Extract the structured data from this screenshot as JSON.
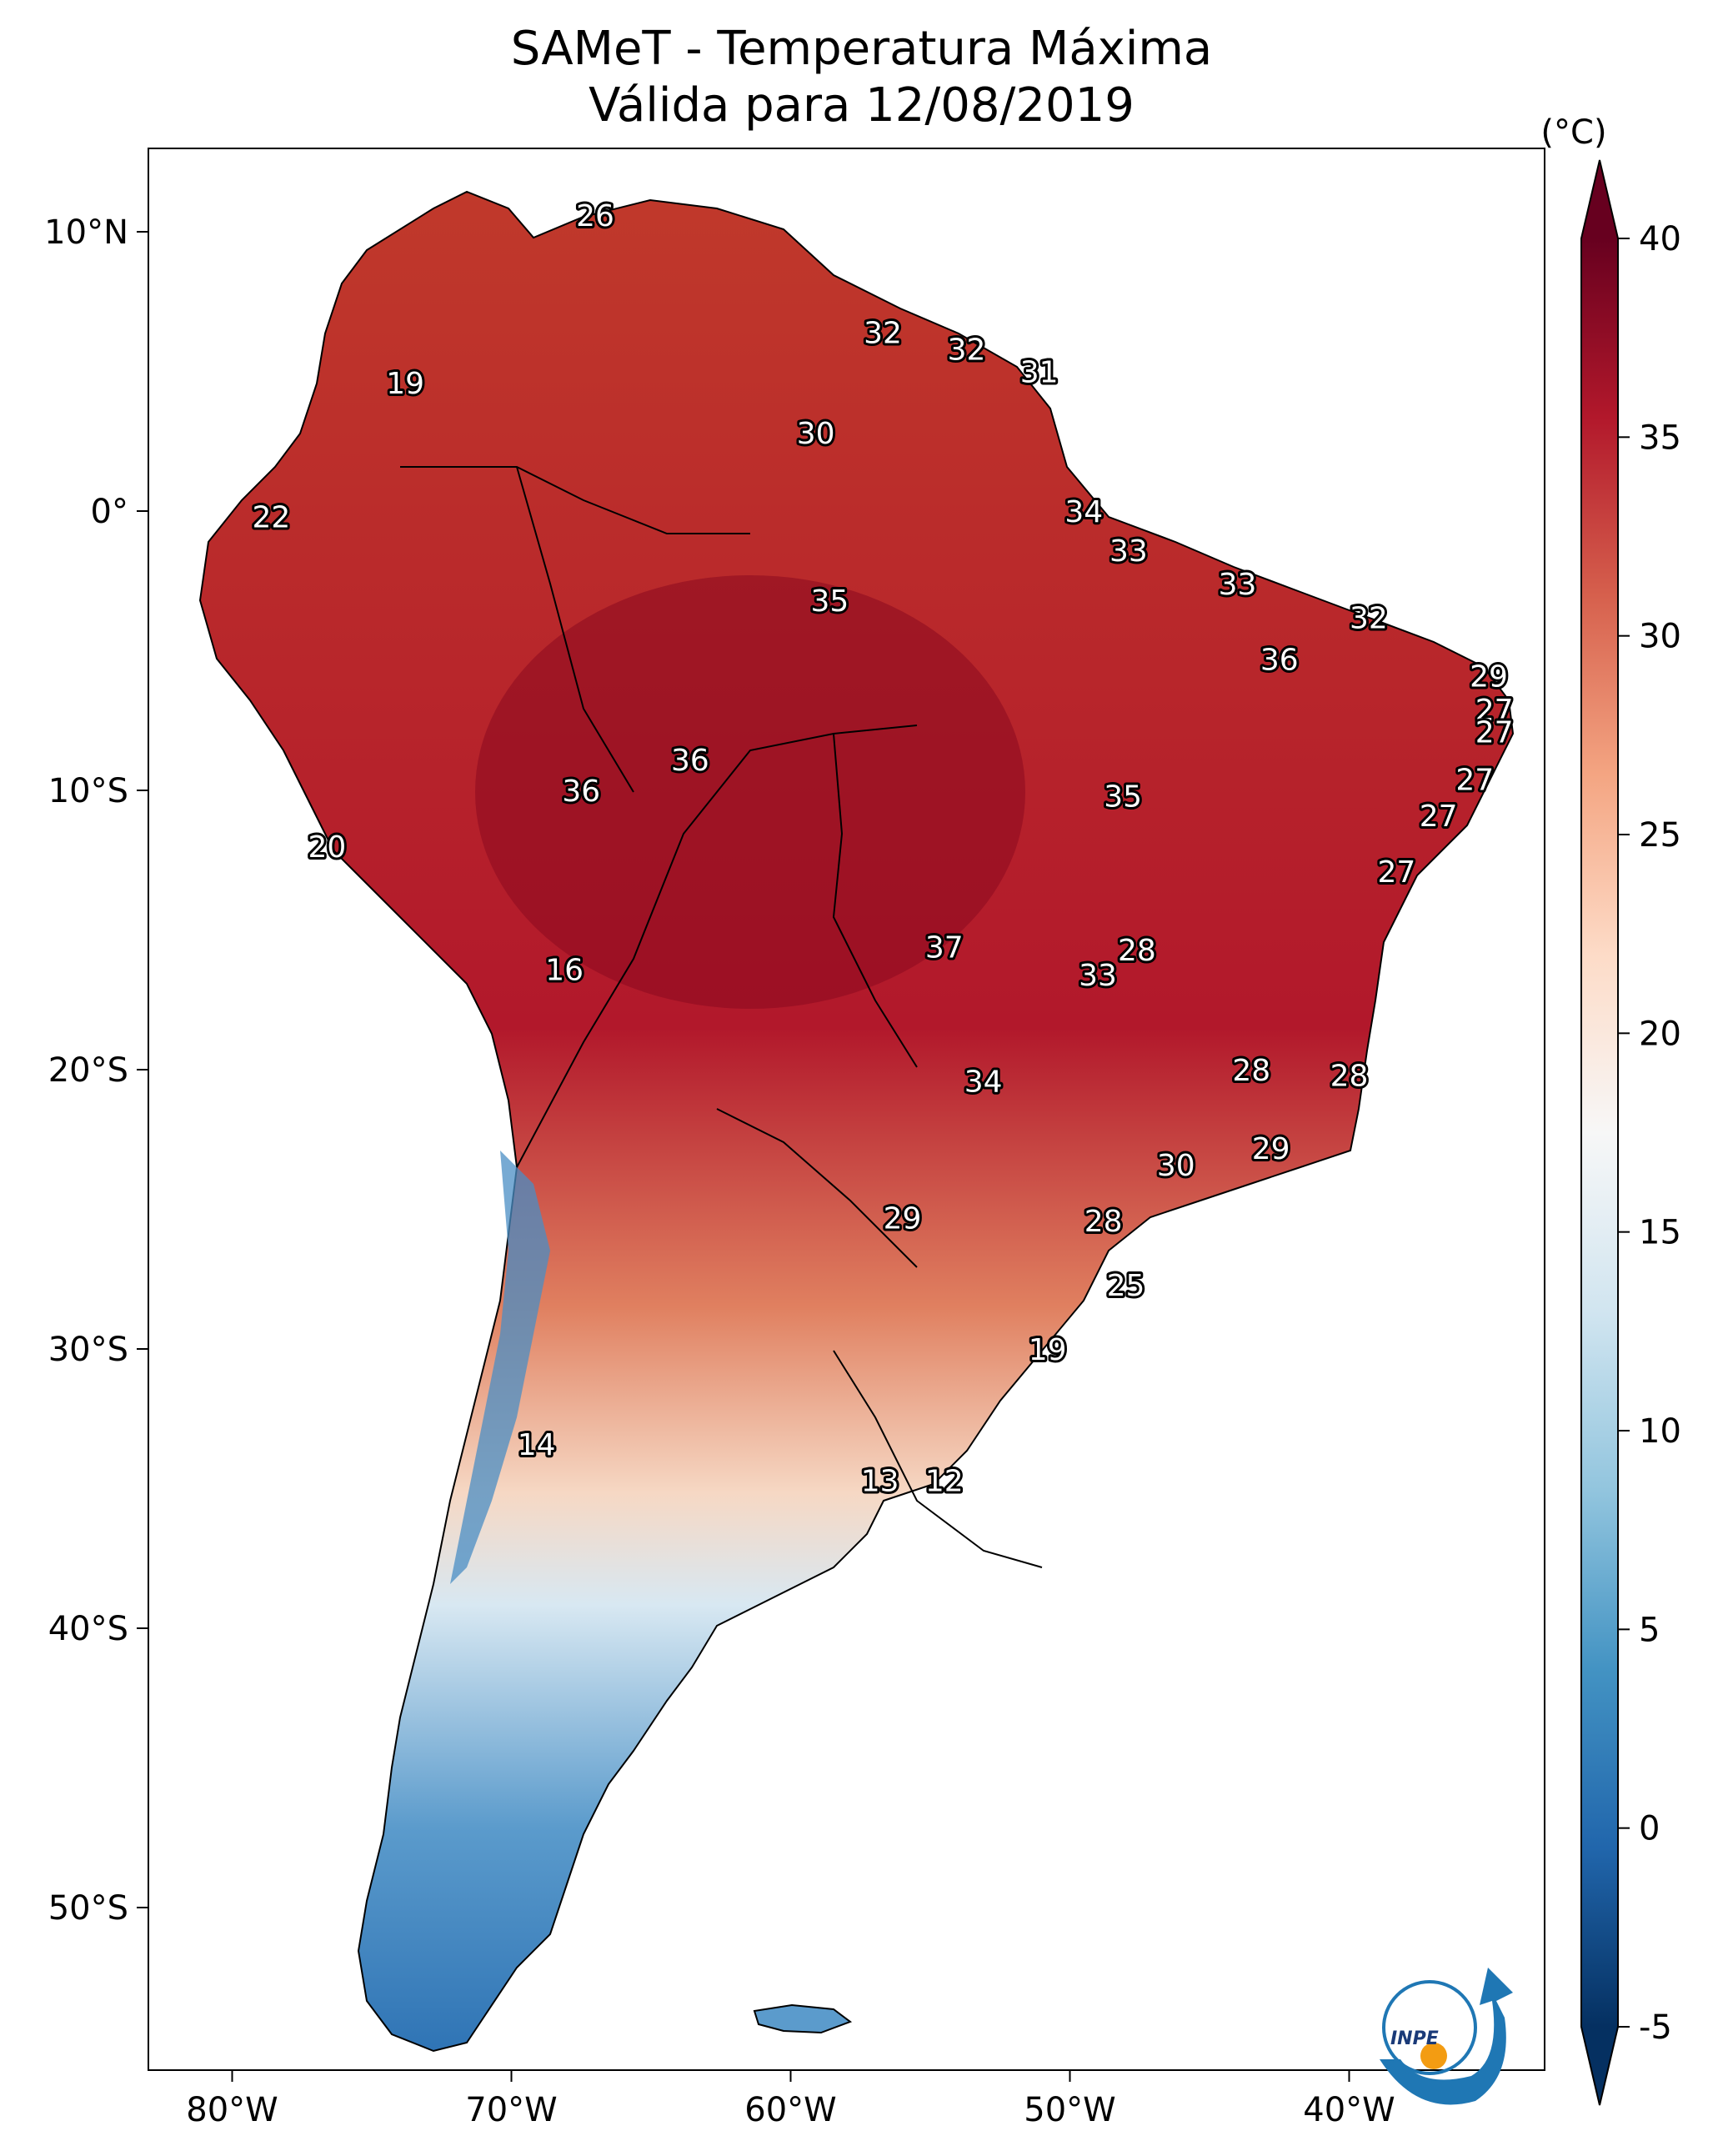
{
  "title_line1": "SAMeT - Temperatura Máxima",
  "title_line2": "Válida para 12/08/2019",
  "colorbar": {
    "unit": "(°C)",
    "ticks": [
      "40",
      "35",
      "30",
      "25",
      "20",
      "15",
      "10",
      "5",
      "0",
      "-5"
    ],
    "range": [
      -5,
      40
    ],
    "colors": [
      "#053061",
      "#2166ac",
      "#4393c3",
      "#92c5de",
      "#d1e5f0",
      "#f7f7f7",
      "#fddbc7",
      "#f4a582",
      "#d6604d",
      "#b2182b",
      "#67001f"
    ]
  },
  "axes": {
    "lon_ticks": [
      "80°W",
      "70°W",
      "60°W",
      "50°W",
      "40°W"
    ],
    "lat_ticks": [
      "10°N",
      "0°",
      "10°S",
      "20°S",
      "30°S",
      "40°S",
      "50°S"
    ]
  },
  "logo": {
    "text": "INPE"
  },
  "map_labels": [
    {
      "t": "26",
      "lon": -67,
      "lat": 10.6
    },
    {
      "t": "19",
      "lon": -73.8,
      "lat": 4.6
    },
    {
      "t": "32",
      "lon": -56.7,
      "lat": 6.4
    },
    {
      "t": "32",
      "lon": -53.7,
      "lat": 5.8
    },
    {
      "t": "31",
      "lon": -51.1,
      "lat": 5.0
    },
    {
      "t": "30",
      "lon": -59.1,
      "lat": 2.8
    },
    {
      "t": "22",
      "lon": -78.6,
      "lat": -0.2
    },
    {
      "t": "34",
      "lon": -49.5,
      "lat": 0.0
    },
    {
      "t": "33",
      "lon": -47.9,
      "lat": -1.4
    },
    {
      "t": "33",
      "lon": -44.0,
      "lat": -2.6
    },
    {
      "t": "35",
      "lon": -58.6,
      "lat": -3.2
    },
    {
      "t": "32",
      "lon": -39.3,
      "lat": -3.8
    },
    {
      "t": "36",
      "lon": -42.5,
      "lat": -5.3
    },
    {
      "t": "29",
      "lon": -35.0,
      "lat": -5.9
    },
    {
      "t": "27",
      "lon": -34.8,
      "lat": -7.1
    },
    {
      "t": "27",
      "lon": -34.8,
      "lat": -7.9
    },
    {
      "t": "36",
      "lon": -63.6,
      "lat": -8.9
    },
    {
      "t": "27",
      "lon": -35.5,
      "lat": -9.6
    },
    {
      "t": "36",
      "lon": -67.5,
      "lat": -10.0
    },
    {
      "t": "35",
      "lon": -48.1,
      "lat": -10.2
    },
    {
      "t": "27",
      "lon": -36.8,
      "lat": -10.9
    },
    {
      "t": "20",
      "lon": -76.6,
      "lat": -12.0
    },
    {
      "t": "27",
      "lon": -38.3,
      "lat": -12.9
    },
    {
      "t": "37",
      "lon": -54.5,
      "lat": -15.6
    },
    {
      "t": "28",
      "lon": -47.6,
      "lat": -15.7
    },
    {
      "t": "16",
      "lon": -68.1,
      "lat": -16.4
    },
    {
      "t": "33",
      "lon": -49.0,
      "lat": -16.6
    },
    {
      "t": "28",
      "lon": -43.5,
      "lat": -20.0
    },
    {
      "t": "34",
      "lon": -53.1,
      "lat": -20.4
    },
    {
      "t": "28",
      "lon": -40.0,
      "lat": -20.2
    },
    {
      "t": "29",
      "lon": -42.8,
      "lat": -22.8
    },
    {
      "t": "30",
      "lon": -46.2,
      "lat": -23.4
    },
    {
      "t": "29",
      "lon": -56.0,
      "lat": -25.3
    },
    {
      "t": "28",
      "lon": -48.8,
      "lat": -25.4
    },
    {
      "t": "25",
      "lon": -48.0,
      "lat": -27.7
    },
    {
      "t": "19",
      "lon": -50.8,
      "lat": -30.0
    },
    {
      "t": "14",
      "lon": -69.1,
      "lat": -33.4
    },
    {
      "t": "13",
      "lon": -56.8,
      "lat": -34.7
    },
    {
      "t": "12",
      "lon": -54.5,
      "lat": -34.7
    }
  ]
}
